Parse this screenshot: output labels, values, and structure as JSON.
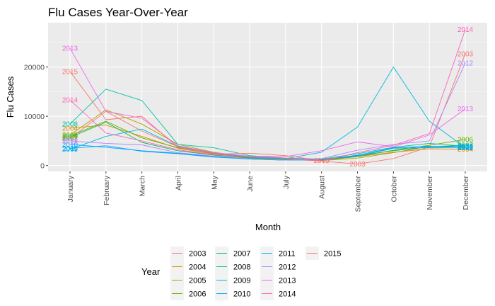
{
  "chart_data": {
    "type": "line",
    "title": "Flu Cases Year-Over-Year",
    "xlabel": "Month",
    "ylabel": "Flu Cases",
    "categories": [
      "January",
      "February",
      "March",
      "April",
      "May",
      "June",
      "July",
      "August",
      "September",
      "October",
      "November",
      "December"
    ],
    "ylim": [
      -1200,
      29000
    ],
    "yticks": [
      0,
      10000,
      20000
    ],
    "ytick_labels": [
      "0",
      "10000",
      "20000"
    ],
    "grid": true,
    "legend": {
      "title": "Year",
      "position": "bottom",
      "ncol": 6
    },
    "series": [
      {
        "name": "2003",
        "color": "#F8766D",
        "values": [
          5500,
          11000,
          7000,
          3800,
          2500,
          1600,
          1300,
          900,
          300,
          1400,
          3800,
          22700
        ],
        "end_labels": [
          "January",
          "September",
          "December"
        ]
      },
      {
        "name": "2004",
        "color": "#DB8E00",
        "values": [
          7600,
          8200,
          5900,
          3500,
          2300,
          1600,
          1300,
          1000,
          1800,
          2700,
          3400,
          3300
        ],
        "end_labels": [
          "January",
          "December"
        ]
      },
      {
        "name": "2005",
        "color": "#AEA200",
        "values": [
          6200,
          11300,
          8400,
          4300,
          2700,
          1700,
          1400,
          1000,
          1500,
          2600,
          3900,
          3600
        ],
        "end_labels": [
          "January",
          "December"
        ]
      },
      {
        "name": "2006",
        "color": "#64B200",
        "values": [
          6000,
          9000,
          5600,
          3600,
          2400,
          1600,
          1300,
          1100,
          1800,
          3100,
          4100,
          5300
        ],
        "end_labels": [
          "January",
          "December"
        ]
      },
      {
        "name": "2007",
        "color": "#00BD5C",
        "values": [
          5700,
          8800,
          4700,
          3000,
          2100,
          1500,
          1200,
          1100,
          2000,
          3000,
          3800,
          4100
        ],
        "end_labels": [
          "January",
          "December"
        ]
      },
      {
        "name": "2008",
        "color": "#00C1A7",
        "values": [
          8400,
          15500,
          13200,
          4300,
          3600,
          2000,
          1500,
          1300,
          2400,
          3700,
          4500,
          3900
        ],
        "end_labels": [
          "January",
          "December"
        ]
      },
      {
        "name": "2009",
        "color": "#00BADE",
        "values": [
          3300,
          5900,
          7400,
          3900,
          2600,
          1700,
          1400,
          2700,
          7800,
          20000,
          9000,
          3600
        ],
        "end_labels": [
          "January",
          "December"
        ]
      },
      {
        "name": "2010",
        "color": "#00A6FF",
        "values": [
          4300,
          3700,
          3000,
          2500,
          1800,
          1300,
          1100,
          1200,
          2100,
          3600,
          3900,
          3800
        ],
        "end_labels": [
          "January",
          "December"
        ]
      },
      {
        "name": "2011",
        "color": "#00A6FF",
        "values": [
          3500,
          4000,
          2900,
          2400,
          1700,
          1300,
          1100,
          1200,
          1900,
          3500,
          3600,
          3700
        ],
        "end_labels": [
          "January",
          "December"
        ]
      },
      {
        "name": "2012",
        "color": "#B385FF",
        "values": [
          5000,
          4500,
          4200,
          2600,
          1900,
          1400,
          1100,
          1400,
          3100,
          4300,
          5000,
          20800
        ],
        "end_labels": [
          "January",
          "December"
        ]
      },
      {
        "name": "2013",
        "color": "#EF67EB",
        "values": [
          23800,
          11000,
          9600,
          4000,
          2600,
          1900,
          1800,
          3000,
          4800,
          3800,
          6200,
          11500
        ],
        "end_labels": [
          "January",
          "December"
        ]
      },
      {
        "name": "2014",
        "color": "#FF63B6",
        "values": [
          13300,
          6600,
          5000,
          3200,
          2200,
          1800,
          1500,
          900,
          2600,
          4100,
          6500,
          27600
        ],
        "end_labels": [
          "January",
          "December"
        ]
      },
      {
        "name": "2015",
        "color": "#F8766D",
        "values": [
          19100,
          9300,
          10000,
          3700,
          2300,
          2500,
          2000,
          1000,
          null,
          null,
          null,
          null
        ],
        "end_labels": [
          "January",
          "August"
        ]
      }
    ]
  }
}
